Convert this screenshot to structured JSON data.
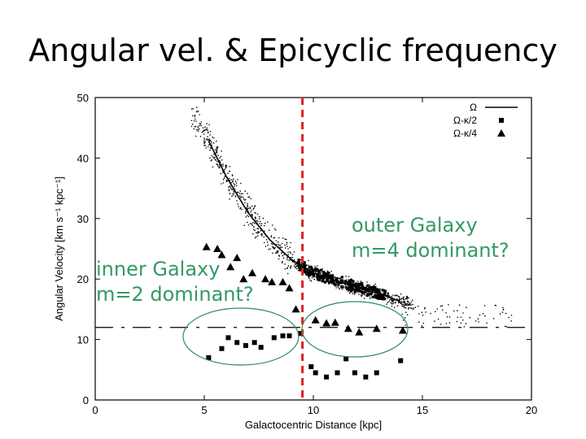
{
  "slide": {
    "title": "Angular vel. & Epicyclic frequency",
    "annotation_inner_line1": "inner Galaxy",
    "annotation_inner_line2": "m=2 dominant?",
    "annotation_outer_line1": "outer Galaxy",
    "annotation_outer_line2": "m=4 dominant?"
  },
  "colors": {
    "annotation": "#339966",
    "ellipse": "#2e8b57",
    "divider": "#dd2222"
  },
  "chart_data": {
    "type": "scatter",
    "xlabel": "Galactocentric Distance [kpc]",
    "ylabel": "Angular Velocity [km s⁻¹ kpc⁻¹]",
    "xlim": [
      0,
      20
    ],
    "ylim": [
      0,
      50
    ],
    "xticks": [
      0,
      5,
      10,
      15,
      20
    ],
    "yticks": [
      0,
      10,
      20,
      30,
      40,
      50
    ],
    "legend_position": "top-right",
    "legend": [
      "Ω",
      "Ω-κ/2",
      "Ω-κ/4"
    ],
    "divider_x": 9.5,
    "pattern_speed_line_y": 12,
    "series": [
      {
        "name": "Ω",
        "marker": "line",
        "x": [
          5.2,
          6.0,
          7.0,
          8.0,
          9.0,
          10.0,
          11.0,
          12.0,
          13.0,
          14.0
        ],
        "y": [
          42.8,
          37.0,
          31.0,
          26.5,
          23.2,
          21.0,
          19.8,
          18.6,
          17.6,
          16.3
        ]
      },
      {
        "name": "Ω-κ/2",
        "marker": "square",
        "x": [
          5.2,
          5.8,
          6.1,
          6.5,
          6.9,
          7.3,
          7.6,
          8.2,
          8.6,
          8.9,
          9.4,
          9.9,
          10.1,
          10.6,
          11.1,
          11.5,
          11.9,
          12.4,
          12.9,
          14.0
        ],
        "y": [
          7.0,
          8.5,
          10.3,
          9.5,
          9.0,
          9.5,
          8.7,
          10.3,
          10.6,
          10.6,
          11.0,
          5.5,
          4.5,
          3.8,
          4.5,
          6.8,
          4.5,
          3.8,
          4.5,
          6.5
        ]
      },
      {
        "name": "Ω-κ/4",
        "marker": "triangle",
        "x": [
          5.1,
          5.6,
          5.8,
          6.2,
          6.5,
          6.8,
          7.2,
          7.8,
          8.1,
          8.6,
          8.9,
          9.2,
          10.1,
          10.6,
          11.0,
          11.6,
          12.1,
          12.9,
          14.1
        ],
        "y": [
          25.3,
          25.0,
          24.0,
          22.0,
          23.5,
          20.0,
          21.0,
          20.0,
          19.5,
          19.5,
          18.5,
          15.0,
          13.2,
          12.7,
          12.8,
          11.8,
          11.2,
          11.8,
          11.5
        ]
      }
    ]
  }
}
